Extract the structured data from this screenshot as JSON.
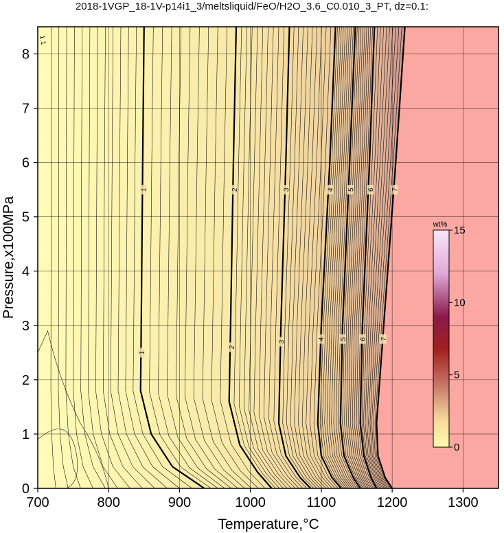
{
  "chart_data": {
    "type": "contour",
    "title": "2018-1VGP_18-1V-p14i1_3/meltsliquid/FeO/H2O_3.6_C0.010_3_PT, dz=0.1:",
    "xlabel": "Temperature,°C",
    "ylabel": "Pressure,x100MPa",
    "xlim": [
      700,
      1350
    ],
    "ylim": [
      0,
      8.5
    ],
    "xticks": [
      "700",
      "800",
      "900",
      "1000",
      "1100",
      "1200",
      "1300"
    ],
    "yticks": [
      "0",
      "1",
      "2",
      "3",
      "4",
      "5",
      "6",
      "7",
      "8"
    ],
    "grid": true,
    "colorbar": {
      "label": "wt%",
      "range": [
        0,
        15
      ],
      "ticks": [
        "0",
        "5",
        "10",
        "15"
      ],
      "placement": "right, inside plot"
    },
    "major_contours": [
      {
        "level": "1",
        "points": [
          [
            850,
            8.5
          ],
          [
            848,
            6
          ],
          [
            846,
            3
          ],
          [
            845,
            1.8
          ],
          [
            860,
            1
          ],
          [
            890,
            0.4
          ],
          [
            935,
            0
          ]
        ],
        "label_positions": [
          [
            849,
            5.5
          ],
          [
            846,
            2.5
          ]
        ]
      },
      {
        "level": "2",
        "points": [
          [
            980,
            8.5
          ],
          [
            976,
            6
          ],
          [
            972,
            3
          ],
          [
            970,
            1.6
          ],
          [
            985,
            0.8
          ],
          [
            1010,
            0.3
          ],
          [
            1030,
            0
          ]
        ],
        "label_positions": [
          [
            977,
            5.5
          ],
          [
            973,
            2.6
          ]
        ]
      },
      {
        "level": "3",
        "points": [
          [
            1055,
            8.5
          ],
          [
            1050,
            6
          ],
          [
            1043,
            3
          ],
          [
            1040,
            1.2
          ],
          [
            1050,
            0.6
          ],
          [
            1070,
            0.2
          ],
          [
            1085,
            0
          ]
        ],
        "label_positions": [
          [
            1050,
            5.5
          ],
          [
            1043,
            2.7
          ]
        ]
      },
      {
        "level": "4",
        "points": [
          [
            1120,
            8.5
          ],
          [
            1112,
            6
          ],
          [
            1100,
            3
          ],
          [
            1095,
            1.2
          ],
          [
            1100,
            0.6
          ],
          [
            1115,
            0.2
          ],
          [
            1128,
            0
          ]
        ],
        "label_positions": [
          [
            1112,
            5.5
          ],
          [
            1099,
            2.75
          ]
        ]
      },
      {
        "level": "5",
        "points": [
          [
            1148,
            8.5
          ],
          [
            1140,
            6
          ],
          [
            1130,
            3
          ],
          [
            1127,
            1.2
          ],
          [
            1132,
            0.6
          ],
          [
            1145,
            0.2
          ],
          [
            1155,
            0
          ]
        ],
        "label_positions": [
          [
            1141,
            5.5
          ],
          [
            1130,
            2.75
          ]
        ]
      },
      {
        "level": "6",
        "points": [
          [
            1175,
            8.5
          ],
          [
            1168,
            6
          ],
          [
            1158,
            3
          ],
          [
            1155,
            1.2
          ],
          [
            1160,
            0.6
          ],
          [
            1170,
            0.2
          ],
          [
            1178,
            0
          ]
        ],
        "label_positions": [
          [
            1169,
            5.5
          ],
          [
            1158,
            2.75
          ]
        ]
      },
      {
        "level": "7",
        "points": [
          [
            1218,
            8.5
          ],
          [
            1205,
            6
          ],
          [
            1188,
            3
          ],
          [
            1178,
            1.2
          ],
          [
            1180,
            0.6
          ],
          [
            1190,
            0.2
          ],
          [
            1200,
            0
          ]
        ],
        "label_positions": [
          [
            1203,
            5.5
          ],
          [
            1187,
            2.75
          ]
        ]
      }
    ],
    "minor_contour_interval": 0.1,
    "saturated_region": {
      "description": "liquid field, right of the level-7 contour",
      "x_from": 1205,
      "fill": "#fca8a2"
    },
    "corner_label": "1.1"
  },
  "colors": {
    "low": "#fffcb6",
    "mid": "#f6e0a8",
    "high": "#d6a092",
    "saturated": "#fca8a2",
    "colorbar_low": "#fcfcaa",
    "colorbar_mid": "#a02020",
    "colorbar_high": "#fae8f8"
  }
}
